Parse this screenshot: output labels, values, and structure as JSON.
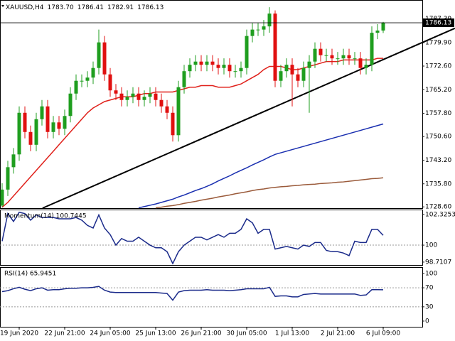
{
  "chart_data": [
    {
      "type": "candlestick",
      "symbol": "XAUUSD,H4",
      "last_ohlc_labels": [
        "1783.70",
        "1786.41",
        "1782.91",
        "1786.13"
      ],
      "categories": [
        null,
        null,
        null,
        "19 Jun 2020",
        null,
        null,
        null,
        null,
        null,
        null,
        null,
        "22 Jun 21:00",
        null,
        null,
        null,
        null,
        null,
        null,
        null,
        "24 Jun 05:00",
        null,
        null,
        null,
        null,
        null,
        null,
        null,
        "25 Jun 13:00",
        null,
        null,
        null,
        null,
        null,
        null,
        null,
        "26 Jun 21:00",
        null,
        null,
        null,
        null,
        null,
        null,
        null,
        "30 Jun 05:00",
        null,
        null,
        null,
        null,
        null,
        null,
        null,
        "1 Jul 13:00",
        null,
        null,
        null,
        null,
        null,
        null,
        null,
        "2 Jul 21:00",
        null,
        null,
        null,
        null,
        null,
        null,
        null,
        "6 Jul 09:00"
      ],
      "open": [
        1729,
        1734,
        1741,
        1745,
        1758,
        1752,
        1748,
        1756,
        1760,
        1752,
        1755,
        1753,
        1757,
        1764,
        1768,
        1768,
        1769,
        1772,
        1780,
        1770,
        1765,
        1764,
        1762,
        1763,
        1764,
        1762,
        1763,
        1764,
        1762,
        1760,
        1758,
        1751,
        1766,
        1771,
        1773,
        1774,
        1773,
        1774,
        1773,
        1772,
        1773,
        1771,
        1771,
        1772,
        1782,
        1784,
        1784,
        1785,
        1789,
        1768,
        1771,
        1773,
        1770,
        1768,
        1772,
        1774,
        1778,
        1776,
        1776,
        1775,
        1775,
        1776,
        1775,
        1775,
        1772,
        1773,
        1783,
        1783.7
      ],
      "high": [
        1736,
        1743,
        1747,
        1760,
        1760,
        1754,
        1758,
        1762,
        1762,
        1757,
        1757,
        1759,
        1766,
        1770,
        1770,
        1771,
        1774,
        1784,
        1782,
        1772,
        1767,
        1766,
        1765,
        1766,
        1766,
        1765,
        1766,
        1766,
        1764,
        1762,
        1760,
        1768,
        1773,
        1775,
        1776,
        1776,
        1776,
        1776,
        1775,
        1775,
        1775,
        1773,
        1774,
        1784,
        1786,
        1786,
        1787,
        1791,
        1790,
        1773,
        1775,
        1775,
        1772,
        1774,
        1776,
        1780,
        1780,
        1778,
        1778,
        1777,
        1778,
        1778,
        1777,
        1777,
        1775,
        1785,
        1785.7,
        1786.41
      ],
      "low": [
        1728.5,
        1732,
        1739,
        1743,
        1750,
        1746,
        1746,
        1754,
        1750,
        1750,
        1751,
        1751,
        1755,
        1762,
        1766,
        1766,
        1767,
        1770,
        1768,
        1763,
        1762,
        1760,
        1760,
        1761,
        1760,
        1760,
        1761,
        1760,
        1758,
        1756,
        1749,
        1749,
        1764,
        1769,
        1771,
        1771,
        1771,
        1771,
        1770,
        1770,
        1769,
        1769,
        1769,
        1770,
        1780,
        1782,
        1782,
        1783,
        1766,
        1766,
        1769,
        1760,
        1766,
        1766,
        1758,
        1772,
        1774,
        1774,
        1773,
        1773,
        1773,
        1773,
        1773,
        1770,
        1770,
        1771,
        1781,
        1782.91
      ],
      "close": [
        1734,
        1741,
        1745,
        1758,
        1752,
        1748,
        1756,
        1760,
        1752,
        1755,
        1753,
        1757,
        1764,
        1768,
        1768,
        1769,
        1772,
        1780,
        1770,
        1765,
        1764,
        1762,
        1763,
        1764,
        1762,
        1763,
        1764,
        1762,
        1760,
        1758,
        1751,
        1766,
        1771,
        1773,
        1774,
        1773,
        1774,
        1773,
        1772,
        1773,
        1771,
        1771,
        1772,
        1782,
        1784,
        1784,
        1785,
        1789,
        1768,
        1771,
        1773,
        1770,
        1768,
        1772,
        1774,
        1778,
        1776,
        1776,
        1775,
        1775,
        1776,
        1775,
        1775,
        1772,
        1773,
        1783,
        1783.7,
        1786.13
      ],
      "up_color": "#1f9e1f",
      "down_color": "#e01010",
      "series": [
        {
          "color": "#e0201a",
          "values": [
            1728.5,
            1730,
            1732,
            1734,
            1736,
            1738,
            1740,
            1742,
            1744,
            1746,
            1748,
            1750,
            1752,
            1754,
            1756,
            1758,
            1759.5,
            1760.5,
            1761.5,
            1762,
            1762.5,
            1763,
            1763,
            1763,
            1763.5,
            1764,
            1764,
            1764.5,
            1764.5,
            1764.5,
            1764.5,
            1765,
            1765.5,
            1766,
            1766,
            1766.5,
            1766.5,
            1766.5,
            1766,
            1766,
            1766,
            1766.5,
            1767,
            1768,
            1769,
            1770,
            1771.5,
            1772.5,
            1772.5,
            1772.5,
            1772,
            1771.5,
            1771.5,
            1772,
            1772.5,
            1773,
            1773.5,
            1774,
            1774,
            1774,
            1774.5,
            1774.5,
            1774.5,
            1774.5,
            1774.5,
            1774.5,
            1775,
            1775
          ]
        },
        {
          "color": "#1a2fb0",
          "values": [
            null,
            null,
            null,
            null,
            null,
            null,
            null,
            null,
            null,
            null,
            null,
            null,
            null,
            null,
            null,
            null,
            null,
            null,
            null,
            null,
            null,
            null,
            null,
            null,
            1728.3,
            1728.7,
            1729.1,
            1729.5,
            1730,
            1730.5,
            1731,
            1731.7,
            1732.3,
            1733,
            1733.7,
            1734.3,
            1735,
            1735.8,
            1736.7,
            1737.5,
            1738.3,
            1739.2,
            1740,
            1740.8,
            1741.7,
            1742.5,
            1743.3,
            1744.2,
            1745,
            1745.5,
            1746,
            1746.5,
            1747,
            1747.5,
            1748,
            1748.5,
            1749,
            1749.5,
            1750,
            1750.5,
            1751,
            1751.5,
            1752,
            1752.5,
            1753,
            1753.5,
            1754,
            1754.5
          ]
        },
        {
          "color": "#9a5a3a",
          "values": [
            null,
            null,
            null,
            null,
            null,
            null,
            null,
            null,
            null,
            null,
            null,
            null,
            null,
            null,
            null,
            null,
            null,
            null,
            null,
            null,
            null,
            null,
            null,
            null,
            null,
            null,
            null,
            1728.3,
            1728.5,
            1728.8,
            1729,
            1729.3,
            1729.7,
            1730,
            1730.3,
            1730.7,
            1731,
            1731.3,
            1731.7,
            1732,
            1732.3,
            1732.7,
            1733,
            1733.3,
            1733.7,
            1734,
            1734.2,
            1734.5,
            1734.7,
            1734.9,
            1735,
            1735.2,
            1735.3,
            1735.5,
            1735.6,
            1735.7,
            1735.9,
            1736,
            1736.1,
            1736.3,
            1736.4,
            1736.6,
            1736.8,
            1737,
            1737.2,
            1737.4,
            1737.5,
            1737.7
          ]
        }
      ],
      "trendline": [
        [
          7.1,
          1728.2
        ],
        [
          79.6,
          1784.4
        ]
      ],
      "ylim": [
        1728.2,
        1792.8
      ],
      "yticks": [
        1787.39,
        {
          "value": 1779.9,
          "label": "1779.90"
        },
        {
          "value": 1772.6,
          "label": "1772.60"
        },
        {
          "value": 1765.2,
          "label": "1765.20"
        },
        {
          "value": 1757.8,
          "label": "1757.80"
        },
        {
          "value": 1750.6,
          "label": "1750.60"
        },
        {
          "value": 1743.2,
          "label": "1743.20"
        },
        {
          "value": 1735.8,
          "label": "1735.80"
        },
        {
          "value": 1728.6,
          "label": "1728.60"
        }
      ]
    },
    {
      "type": "line",
      "title": "Momentum(14) 100.7445",
      "color": "#1a2a8a",
      "values": [
        100.3,
        102.4,
        101.8,
        102.5,
        102.4,
        101.9,
        102.3,
        102.1,
        102.1,
        102.1,
        102,
        102,
        102,
        102.1,
        101.9,
        101.5,
        101.3,
        102.3,
        101.3,
        100.8,
        100,
        100.5,
        100.3,
        100.3,
        100.6,
        100.3,
        100,
        99.8,
        99.8,
        99.5,
        98.6,
        99.5,
        100,
        100.3,
        100.6,
        100.6,
        100.4,
        100.6,
        100.8,
        100.6,
        100.9,
        100.9,
        101.2,
        102,
        101.7,
        100.9,
        101.2,
        101.2,
        99.7,
        99.8,
        99.9,
        99.8,
        99.7,
        100,
        99.9,
        100.2,
        100.2,
        99.6,
        99.5,
        99.5,
        99.4,
        99.2,
        100.3,
        100.2,
        100.2,
        101.2,
        101.2,
        100.7445
      ],
      "levels": [
        100
      ],
      "ylim": [
        98.49,
        102.65
      ],
      "yticks": [
        102.3253,
        100,
        98.7107
      ]
    },
    {
      "type": "line",
      "title": "RSI(14) 65.9451",
      "color": "#1a2a8a",
      "values": [
        62,
        64,
        68,
        71,
        67,
        64,
        68,
        70,
        65,
        66,
        66,
        68,
        69,
        69,
        70,
        70,
        71,
        73,
        65,
        61,
        60,
        60,
        60,
        60,
        60,
        60,
        60,
        60,
        59,
        58,
        44,
        61,
        64,
        65,
        65,
        65,
        66,
        65,
        65,
        65,
        64,
        65,
        66,
        68,
        68,
        68,
        68,
        71,
        52,
        53,
        53,
        51,
        51,
        56,
        57,
        58,
        57,
        57,
        57,
        57,
        57,
        57,
        57,
        54,
        55,
        66,
        66,
        65.9451
      ],
      "levels": [
        70,
        30
      ],
      "ylim": [
        -12,
        112
      ],
      "yticks": [
        100,
        70,
        30,
        0
      ]
    }
  ]
}
